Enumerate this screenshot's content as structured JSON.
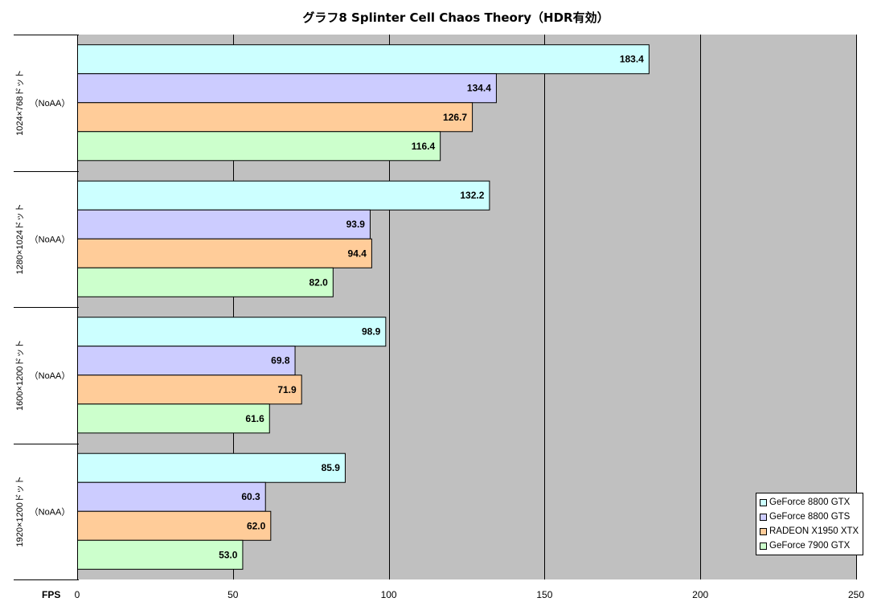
{
  "chart_data": {
    "type": "bar",
    "orientation": "horizontal",
    "title": "グラフ8  Splinter Cell Chaos Theory（HDR有効）",
    "xlabel": "FPS",
    "xlim": [
      0,
      250
    ],
    "xticks": [
      0,
      50,
      100,
      150,
      200,
      250
    ],
    "grid": true,
    "legend_position": "bottom-right",
    "categories": [
      {
        "resolution": "1024×768ドット",
        "mode": "（NoAA）"
      },
      {
        "resolution": "1280×1024ドット",
        "mode": "（NoAA）"
      },
      {
        "resolution": "1600×1200ドット",
        "mode": "（NoAA）"
      },
      {
        "resolution": "1920×1200ドット",
        "mode": "（NoAA）"
      }
    ],
    "series": [
      {
        "name": "GeForce 8800 GTX",
        "color": "#ccffff",
        "values": [
          183.4,
          132.2,
          98.9,
          85.9
        ],
        "labels": [
          "183.4",
          "132.2",
          "98.9",
          "85.9"
        ]
      },
      {
        "name": "GeForce 8800 GTS",
        "color": "#ccccff",
        "values": [
          134.4,
          93.9,
          69.8,
          60.3
        ],
        "labels": [
          "134.4",
          "93.9",
          "69.8",
          "60.3"
        ]
      },
      {
        "name": "RADEON X1950 XTX",
        "color": "#ffcc99",
        "values": [
          126.7,
          94.4,
          71.9,
          62.0
        ],
        "labels": [
          "126.7",
          "94.4",
          "71.9",
          "62.0"
        ]
      },
      {
        "name": "GeForce 7900 GTX",
        "color": "#ccffcc",
        "values": [
          116.4,
          82.0,
          61.6,
          53.0
        ],
        "labels": [
          "116.4",
          "82.0",
          "61.6",
          "53.0"
        ]
      }
    ],
    "plot_background": "#c0c0c0"
  }
}
